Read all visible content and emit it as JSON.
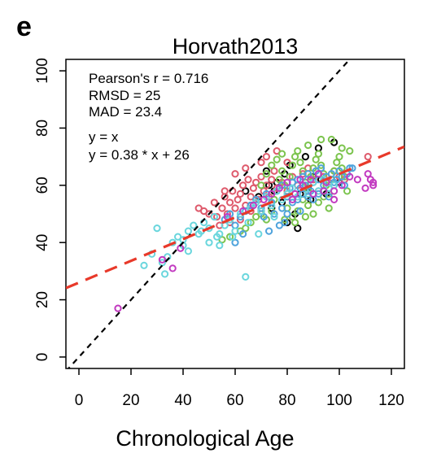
{
  "panel_label": "e",
  "chart_data": {
    "type": "scatter",
    "title": "Horvath2013",
    "xlabel": "Chronological Age",
    "ylabel": "",
    "xlim": [
      -5,
      125
    ],
    "ylim": [
      -4,
      104
    ],
    "xticks": [
      0,
      20,
      40,
      60,
      80,
      100,
      120
    ],
    "yticks": [
      0,
      20,
      40,
      60,
      80,
      100
    ],
    "grid": false,
    "annotations": {
      "pearson": "Pearson's r = 0.716",
      "rmsd": "RMSD = 25",
      "mad": "MAD = 23.4",
      "identity_label": "y = x",
      "fit_label": "y = 0.38 * x + 26"
    },
    "identity_line": {
      "slope": 1,
      "intercept": 0,
      "color": "#000000"
    },
    "fit_line": {
      "slope": 0.38,
      "intercept": 26,
      "color": "#e8392a"
    },
    "series": [
      {
        "color": "#000000",
        "points": [
          [
            73,
            60
          ],
          [
            75,
            58
          ],
          [
            78,
            54
          ],
          [
            80,
            47
          ],
          [
            83,
            50
          ],
          [
            85,
            57
          ],
          [
            90,
            63
          ],
          [
            93,
            62
          ],
          [
            98,
            75
          ],
          [
            66,
            53
          ],
          [
            72,
            65
          ],
          [
            88,
            59
          ],
          [
            95,
            57
          ],
          [
            84,
            45
          ],
          [
            70,
            51
          ],
          [
            76,
            61
          ],
          [
            81,
            67
          ],
          [
            87,
            70
          ],
          [
            92,
            73
          ],
          [
            100,
            61
          ],
          [
            69,
            56
          ],
          [
            79,
            64
          ],
          [
            64,
            58
          ],
          [
            74,
            52
          ],
          [
            89,
            55
          ]
        ]
      },
      {
        "color": "#de5a6c",
        "points": [
          [
            46,
            52
          ],
          [
            48,
            51
          ],
          [
            50,
            50
          ],
          [
            52,
            54
          ],
          [
            53,
            49
          ],
          [
            55,
            52
          ],
          [
            56,
            56
          ],
          [
            57,
            50
          ],
          [
            58,
            54
          ],
          [
            59,
            58
          ],
          [
            60,
            52
          ],
          [
            61,
            55
          ],
          [
            62,
            57
          ],
          [
            63,
            60
          ],
          [
            64,
            53
          ],
          [
            65,
            62
          ],
          [
            66,
            56
          ],
          [
            67,
            59
          ],
          [
            68,
            61
          ],
          [
            69,
            55
          ],
          [
            70,
            63
          ],
          [
            71,
            58
          ],
          [
            72,
            60
          ],
          [
            73,
            56
          ],
          [
            74,
            62
          ],
          [
            75,
            65
          ],
          [
            76,
            59
          ],
          [
            78,
            61
          ],
          [
            80,
            58
          ],
          [
            82,
            63
          ],
          [
            84,
            60
          ],
          [
            86,
            64
          ],
          [
            88,
            66
          ],
          [
            90,
            62
          ],
          [
            92,
            58
          ],
          [
            94,
            63
          ],
          [
            96,
            61
          ],
          [
            98,
            65
          ],
          [
            100,
            63
          ],
          [
            102,
            62
          ],
          [
            60,
            64
          ],
          [
            62,
            48
          ],
          [
            58,
            47
          ],
          [
            64,
            66
          ],
          [
            56,
            58
          ],
          [
            54,
            46
          ],
          [
            66,
            51
          ],
          [
            70,
            68
          ],
          [
            72,
            70
          ],
          [
            76,
            72
          ],
          [
            80,
            68
          ],
          [
            111,
            70
          ]
        ]
      },
      {
        "color": "#7cc44e",
        "points": [
          [
            55,
            41
          ],
          [
            58,
            42
          ],
          [
            62,
            44
          ],
          [
            64,
            45
          ],
          [
            66,
            47
          ],
          [
            68,
            49
          ],
          [
            70,
            50
          ],
          [
            72,
            48
          ],
          [
            74,
            51
          ],
          [
            75,
            55
          ],
          [
            76,
            58
          ],
          [
            77,
            62
          ],
          [
            78,
            65
          ],
          [
            79,
            60
          ],
          [
            80,
            56
          ],
          [
            81,
            63
          ],
          [
            82,
            67
          ],
          [
            83,
            70
          ],
          [
            84,
            72
          ],
          [
            85,
            68
          ],
          [
            86,
            65
          ],
          [
            87,
            61
          ],
          [
            88,
            58
          ],
          [
            89,
            63
          ],
          [
            90,
            66
          ],
          [
            91,
            69
          ],
          [
            92,
            71
          ],
          [
            93,
            67
          ],
          [
            94,
            64
          ],
          [
            95,
            60
          ],
          [
            96,
            57
          ],
          [
            97,
            62
          ],
          [
            98,
            65
          ],
          [
            99,
            68
          ],
          [
            100,
            70
          ],
          [
            101,
            66
          ],
          [
            102,
            63
          ],
          [
            80,
            52
          ],
          [
            82,
            49
          ],
          [
            84,
            51
          ],
          [
            86,
            55
          ],
          [
            88,
            53
          ],
          [
            90,
            50
          ],
          [
            92,
            54
          ],
          [
            94,
            56
          ],
          [
            96,
            52
          ],
          [
            70,
            60
          ],
          [
            72,
            64
          ],
          [
            74,
            67
          ],
          [
            76,
            69
          ],
          [
            78,
            71
          ],
          [
            88,
            74
          ],
          [
            93,
            76
          ],
          [
            97,
            76
          ],
          [
            101,
            73
          ],
          [
            104,
            72
          ],
          [
            79,
            48
          ],
          [
            83,
            47
          ],
          [
            87,
            49
          ],
          [
            103,
            58
          ]
        ]
      },
      {
        "color": "#4fa3dc",
        "points": [
          [
            56,
            48
          ],
          [
            58,
            50
          ],
          [
            60,
            46
          ],
          [
            62,
            49
          ],
          [
            64,
            51
          ],
          [
            66,
            53
          ],
          [
            68,
            55
          ],
          [
            70,
            52
          ],
          [
            72,
            57
          ],
          [
            74,
            54
          ],
          [
            76,
            58
          ],
          [
            78,
            60
          ],
          [
            80,
            56
          ],
          [
            81,
            59
          ],
          [
            82,
            61
          ],
          [
            83,
            57
          ],
          [
            84,
            62
          ],
          [
            85,
            59
          ],
          [
            86,
            63
          ],
          [
            87,
            60
          ],
          [
            88,
            64
          ],
          [
            89,
            58
          ],
          [
            90,
            61
          ],
          [
            91,
            65
          ],
          [
            92,
            62
          ],
          [
            93,
            66
          ],
          [
            94,
            60
          ],
          [
            95,
            63
          ],
          [
            96,
            59
          ],
          [
            97,
            64
          ],
          [
            98,
            61
          ],
          [
            99,
            62
          ],
          [
            100,
            65
          ],
          [
            101,
            63
          ],
          [
            102,
            60
          ],
          [
            103,
            64
          ],
          [
            104,
            66
          ],
          [
            105,
            66
          ],
          [
            78,
            52
          ],
          [
            80,
            50
          ],
          [
            82,
            54
          ],
          [
            84,
            55
          ],
          [
            86,
            57
          ],
          [
            88,
            56
          ],
          [
            90,
            55
          ],
          [
            92,
            57
          ],
          [
            94,
            58
          ],
          [
            96,
            56
          ],
          [
            75,
            50
          ],
          [
            77,
            46
          ],
          [
            79,
            47
          ],
          [
            85,
            51
          ],
          [
            60,
            40
          ],
          [
            63,
            43
          ],
          [
            73,
            44
          ],
          [
            71,
            49
          ]
        ]
      },
      {
        "color": "#6ad6dd",
        "points": [
          [
            25,
            32
          ],
          [
            28,
            36
          ],
          [
            30,
            45
          ],
          [
            32,
            33
          ],
          [
            33,
            29
          ],
          [
            34,
            35
          ],
          [
            36,
            40
          ],
          [
            38,
            42
          ],
          [
            40,
            41
          ],
          [
            42,
            44
          ],
          [
            44,
            46
          ],
          [
            46,
            43
          ],
          [
            48,
            47
          ],
          [
            50,
            45
          ],
          [
            52,
            49
          ],
          [
            54,
            43
          ],
          [
            56,
            46
          ],
          [
            58,
            48
          ],
          [
            60,
            44
          ],
          [
            62,
            50
          ],
          [
            64,
            28
          ],
          [
            66,
            52
          ],
          [
            68,
            54
          ],
          [
            70,
            51
          ],
          [
            72,
            56
          ],
          [
            74,
            53
          ],
          [
            76,
            58
          ],
          [
            78,
            55
          ],
          [
            80,
            57
          ],
          [
            82,
            59
          ],
          [
            84,
            56
          ],
          [
            86,
            60
          ],
          [
            88,
            57
          ],
          [
            90,
            61
          ],
          [
            92,
            58
          ],
          [
            94,
            62
          ],
          [
            96,
            59
          ],
          [
            98,
            60
          ],
          [
            40,
            39
          ],
          [
            50,
            40
          ],
          [
            54,
            39
          ],
          [
            59,
            42
          ],
          [
            65,
            47
          ],
          [
            69,
            43
          ],
          [
            75,
            49
          ],
          [
            42,
            37
          ],
          [
            47,
            44
          ],
          [
            53,
            42
          ]
        ]
      },
      {
        "color": "#c23ac0",
        "points": [
          [
            15,
            17
          ],
          [
            32,
            34
          ],
          [
            36,
            31
          ],
          [
            39,
            38
          ],
          [
            57,
            49
          ],
          [
            63,
            51
          ],
          [
            67,
            53
          ],
          [
            71,
            55
          ],
          [
            74,
            57
          ],
          [
            77,
            59
          ],
          [
            80,
            61
          ],
          [
            83,
            57
          ],
          [
            86,
            60
          ],
          [
            89,
            62
          ],
          [
            92,
            64
          ],
          [
            95,
            61
          ],
          [
            98,
            58
          ],
          [
            101,
            60
          ],
          [
            104,
            63
          ],
          [
            107,
            62
          ],
          [
            110,
            59
          ],
          [
            111,
            64
          ],
          [
            112,
            62
          ],
          [
            113,
            61
          ],
          [
            113,
            60
          ],
          [
            98,
            55
          ],
          [
            94,
            58
          ],
          [
            90,
            57
          ],
          [
            85,
            62
          ],
          [
            82,
            55
          ]
        ]
      }
    ]
  }
}
